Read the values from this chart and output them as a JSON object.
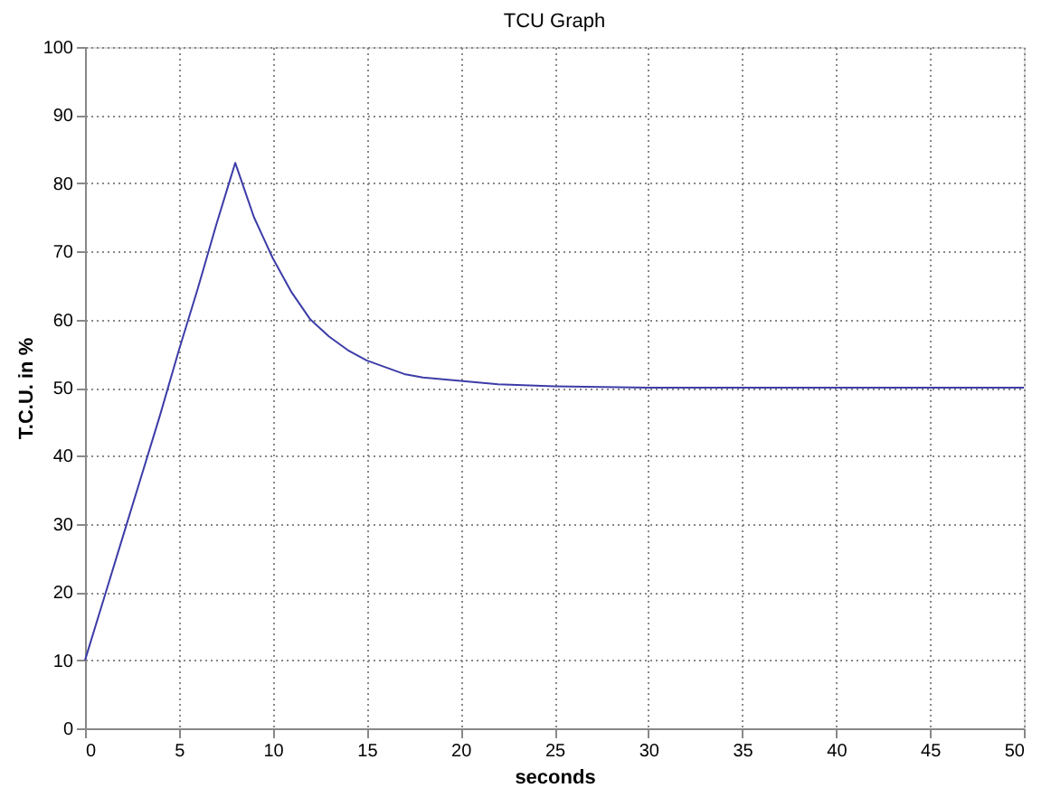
{
  "chart_data": {
    "type": "line",
    "title": "TCU Graph",
    "xlabel": "seconds",
    "ylabel": "T.C.U. in %",
    "x": [
      0,
      1,
      2,
      3,
      4,
      5,
      6,
      7,
      8,
      8.5,
      9,
      9.5,
      10,
      11,
      12,
      13,
      14,
      15,
      16,
      17,
      18,
      20,
      22,
      25,
      30,
      35,
      40,
      45,
      50
    ],
    "series": [
      {
        "color": "#3c3ca8",
        "values": [
          10,
          19,
          28,
          37,
          46,
          55.5,
          64.5,
          74,
          83,
          79,
          75,
          72,
          69,
          64,
          60,
          57.5,
          55.5,
          54,
          53,
          52,
          51.5,
          51,
          50.5,
          50.2,
          50,
          50,
          50,
          50,
          50
        ]
      }
    ],
    "xlim": [
      0,
      50
    ],
    "xticks": [
      0,
      5,
      10,
      15,
      20,
      25,
      30,
      35,
      40,
      45,
      50
    ],
    "ylim": [
      0,
      100
    ],
    "yticks": [
      0,
      10,
      20,
      30,
      40,
      50,
      60,
      70,
      80,
      90,
      100
    ],
    "grid": true,
    "legend": false,
    "marker": "none",
    "line_style": "solid"
  }
}
